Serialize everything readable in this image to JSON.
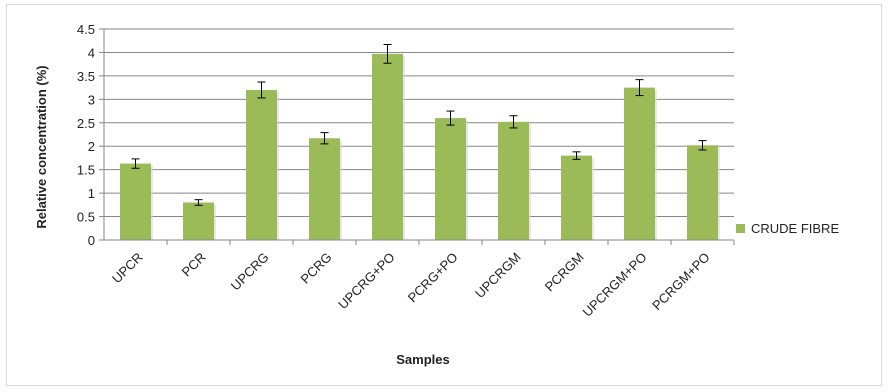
{
  "chart_data": {
    "type": "bar",
    "categories": [
      "UPCR",
      "PCR",
      "UPCRG",
      "PCRG",
      "UPCRG+PO",
      "PCRG+PO",
      "UPCRGM",
      "PCRGM",
      "UPCRGM+PO",
      "PCRGM+PO"
    ],
    "series": [
      {
        "name": "CRUDE FIBRE",
        "values": [
          1.63,
          0.8,
          3.2,
          2.17,
          3.97,
          2.6,
          2.52,
          1.8,
          3.25,
          2.02
        ],
        "errors": [
          0.1,
          0.06,
          0.17,
          0.12,
          0.2,
          0.15,
          0.13,
          0.08,
          0.17,
          0.1
        ]
      }
    ],
    "xlabel": "Samples",
    "ylabel": "Relative concentration (%)",
    "ylim": [
      0,
      4.5
    ],
    "yticks": [
      0,
      0.5,
      1,
      1.5,
      2,
      2.5,
      3,
      3.5,
      4,
      4.5
    ],
    "ytick_labels": [
      "0",
      "0.5",
      "1",
      "1.5",
      "2",
      "2.5",
      "3",
      "3.5",
      "4",
      "4.5"
    ],
    "grid": true,
    "legend_position": "right",
    "colors": {
      "bar": "#9bbb59",
      "grid": "#878787",
      "axis": "#878787",
      "error": "#000000"
    }
  }
}
